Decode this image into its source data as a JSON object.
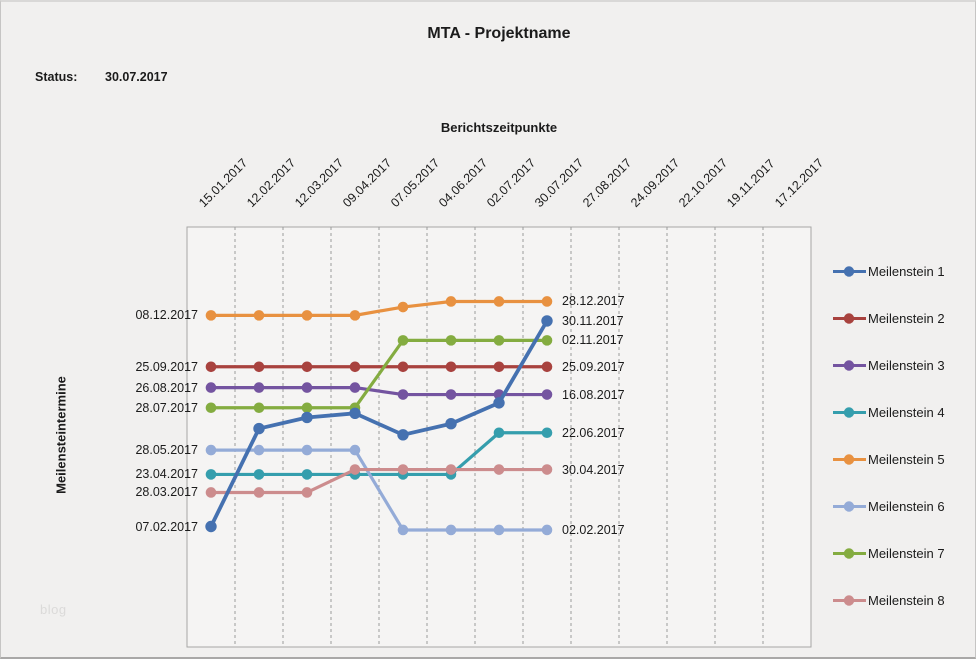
{
  "page": {
    "watermark": "blog"
  },
  "chart_data": {
    "type": "line",
    "title": "MTA - Projektname",
    "status": {
      "label": "Status:",
      "value": "30.07.2017"
    },
    "xlabel": "Berichtszeitpunkte",
    "ylabel": "Meilensteintermine",
    "x_axis_position": "top",
    "gridlines": "vertical-dashed",
    "legend_position": "right",
    "appearance": {
      "plot_border_color": "#a6a6a6",
      "gridline_color": "#9b9b9b",
      "plot_fill": "#f5f4f3",
      "text_color": "#1b1b1b"
    },
    "categories": [
      "15.01.2017",
      "12.02.2017",
      "12.03.2017",
      "09.04.2017",
      "07.05.2017",
      "04.06.2017",
      "02.07.2017",
      "30.07.2017",
      "27.08.2017",
      "24.09.2017",
      "22.10.2017",
      "19.11.2017",
      "17.12.2017"
    ],
    "reported_points": 8,
    "series": [
      {
        "name": "Meilenstein 1",
        "color": "#4571B0",
        "values": [
          "07.02.2017",
          "28.06.2017",
          "14.07.2017",
          "20.07.2017",
          "19.06.2017",
          "05.07.2017",
          "04.08.2017",
          "30.11.2017"
        ],
        "start_label": "07.02.2017",
        "end_label": "30.11.2017"
      },
      {
        "name": "Meilenstein 2",
        "color": "#A8423E",
        "values": [
          "25.09.2017",
          "25.09.2017",
          "25.09.2017",
          "25.09.2017",
          "25.09.2017",
          "25.09.2017",
          "25.09.2017",
          "25.09.2017"
        ],
        "start_label": "25.09.2017",
        "end_label": "25.09.2017"
      },
      {
        "name": "Meilenstein 3",
        "color": "#7454A0",
        "values": [
          "26.08.2017",
          "26.08.2017",
          "26.08.2017",
          "26.08.2017",
          "16.08.2017",
          "16.08.2017",
          "16.08.2017",
          "16.08.2017"
        ],
        "start_label": "26.08.2017",
        "end_label": "16.08.2017"
      },
      {
        "name": "Meilenstein 4",
        "color": "#359EAD",
        "values": [
          "23.04.2017",
          "23.04.2017",
          "23.04.2017",
          "23.04.2017",
          "23.04.2017",
          "23.04.2017",
          "22.06.2017",
          "22.06.2017"
        ],
        "start_label": "23.04.2017",
        "end_label": "22.06.2017"
      },
      {
        "name": "Meilenstein 5",
        "color": "#E89140",
        "values": [
          "08.12.2017",
          "08.12.2017",
          "08.12.2017",
          "08.12.2017",
          "20.12.2017",
          "28.12.2017",
          "28.12.2017",
          "28.12.2017"
        ],
        "start_label": "08.12.2017",
        "end_label": "28.12.2017"
      },
      {
        "name": "Meilenstein 6",
        "color": "#94ABD7",
        "values": [
          "28.05.2017",
          "28.05.2017",
          "28.05.2017",
          "28.05.2017",
          "02.02.2017",
          "02.02.2017",
          "02.02.2017",
          "02.02.2017"
        ],
        "start_label": "28.05.2017",
        "end_label": "02.02.2017"
      },
      {
        "name": "Meilenstein 7",
        "color": "#84AC40",
        "values": [
          "28.07.2017",
          "28.07.2017",
          "28.07.2017",
          "28.07.2017",
          "02.11.2017",
          "02.11.2017",
          "02.11.2017",
          "02.11.2017"
        ],
        "start_label": "28.07.2017",
        "end_label": "02.11.2017"
      },
      {
        "name": "Meilenstein 8",
        "color": "#CC8C8D",
        "values": [
          "28.03.2017",
          "28.03.2017",
          "28.03.2017",
          "30.04.2017",
          "30.04.2017",
          "30.04.2017",
          "30.04.2017",
          "30.04.2017"
        ],
        "start_label": "28.03.2017",
        "end_label": "30.04.2017"
      }
    ]
  }
}
